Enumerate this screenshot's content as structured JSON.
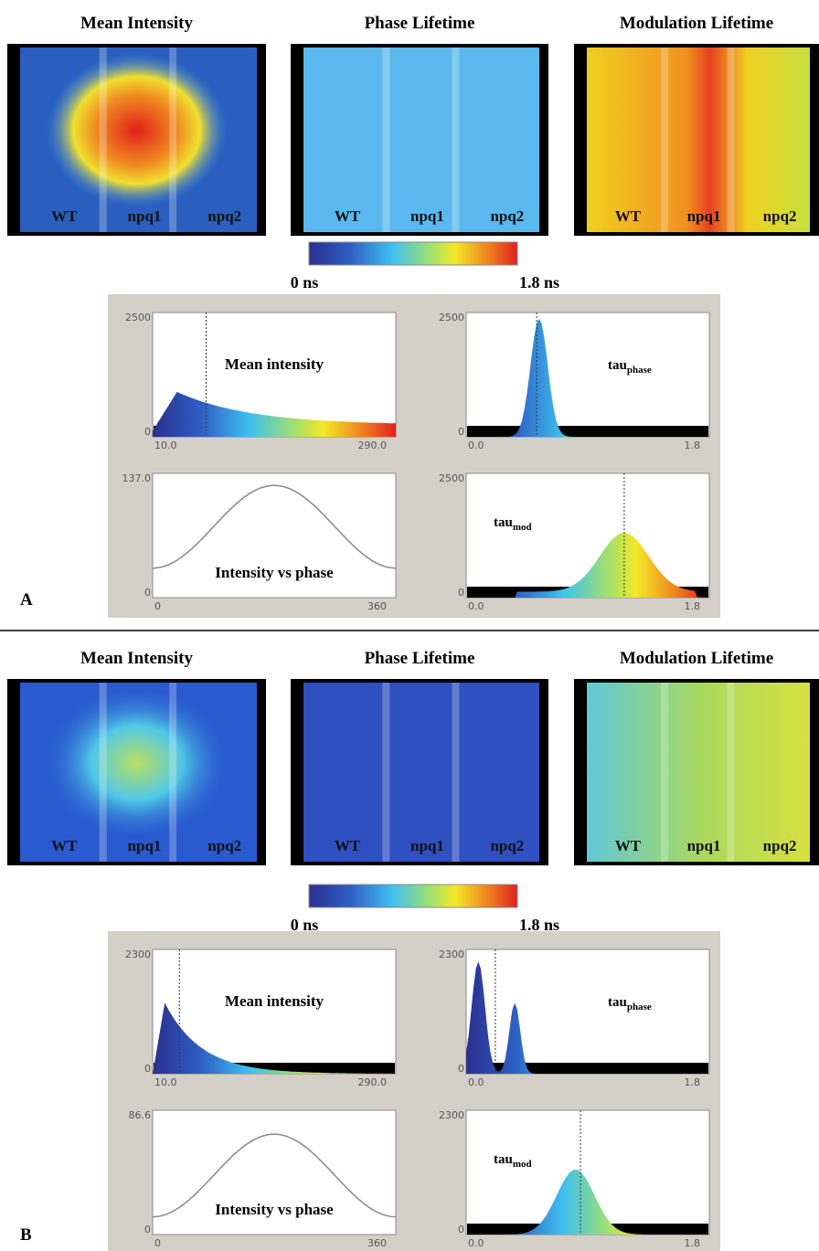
{
  "panels": [
    {
      "label": "A",
      "images": [
        {
          "title": "Mean Intensity",
          "labels": [
            "WT",
            "npq1",
            "npq2"
          ]
        },
        {
          "title": "Phase Lifetime",
          "labels": [
            "WT",
            "npq1",
            "npq2"
          ]
        },
        {
          "title": "Modulation Lifetime",
          "labels": [
            "WT",
            "npq1",
            "npq2"
          ]
        }
      ],
      "colorbar": {
        "min": "0 ns",
        "max": "1.8 ns"
      },
      "plots": [
        {
          "title": "Mean intensity",
          "ymax": "2500",
          "ymin": "0",
          "xmin": "10.0",
          "xmax": "290.0"
        },
        {
          "title": "tau",
          "subscript": "phase",
          "ymax": "2500",
          "ymin": "0",
          "xmin": "0.0",
          "xmax": "1.8"
        },
        {
          "title": "Intensity vs phase",
          "ymax": "137.0",
          "ymin": "0",
          "xmin": "0",
          "xmax": "360"
        },
        {
          "title": "tau",
          "subscript": "mod",
          "ymax": "2500",
          "ymin": "0",
          "xmin": "0.0",
          "xmax": "1.8"
        }
      ]
    },
    {
      "label": "B",
      "images": [
        {
          "title": "Mean Intensity",
          "labels": [
            "WT",
            "npq1",
            "npq2"
          ]
        },
        {
          "title": "Phase Lifetime",
          "labels": [
            "WT",
            "npq1",
            "npq2"
          ]
        },
        {
          "title": "Modulation Lifetime",
          "labels": [
            "WT",
            "npq1",
            "npq2"
          ]
        }
      ],
      "colorbar": {
        "min": "0 ns",
        "max": "1.8 ns"
      },
      "plots": [
        {
          "title": "Mean intensity",
          "ymax": "2300",
          "ymin": "0",
          "xmin": "10.0",
          "xmax": "290.0"
        },
        {
          "title": "tau",
          "subscript": "phase",
          "ymax": "2300",
          "ymin": "0",
          "xmin": "0.0",
          "xmax": "1.8"
        },
        {
          "title": "Intensity vs phase",
          "ymax": "86.6",
          "ymin": "0",
          "xmin": "0",
          "xmax": "360"
        },
        {
          "title": "tau",
          "subscript": "mod",
          "ymax": "2300",
          "ymin": "0",
          "xmin": "0.0",
          "xmax": "1.8"
        }
      ]
    }
  ]
}
